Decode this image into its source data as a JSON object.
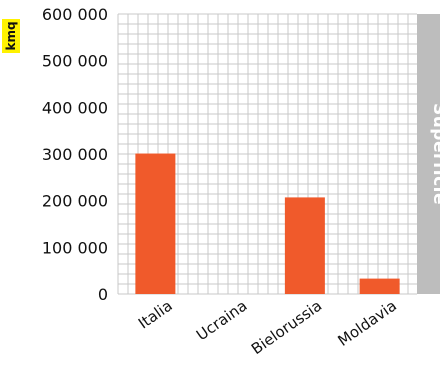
{
  "chart_data": {
    "type": "bar",
    "categories": [
      "Italia",
      "Ucraina",
      "Bielorussia",
      "Moldavia"
    ],
    "values": [
      301000,
      0,
      207000,
      33000
    ],
    "ylim": [
      0,
      600000
    ],
    "yticks": [
      0,
      100000,
      200000,
      300000,
      400000,
      500000,
      600000
    ],
    "ytick_labels": [
      "0",
      "100 000",
      "200 000",
      "300 000",
      "400 000",
      "500 000",
      "600 000"
    ],
    "ylabel": "kmq",
    "side_label": "Superficie",
    "grid": true
  },
  "colors": {
    "bar": "#f05a2b",
    "grid": "#c8c8c8",
    "side_panel": "#bdbdbd",
    "unit_badge": "#fff200"
  }
}
